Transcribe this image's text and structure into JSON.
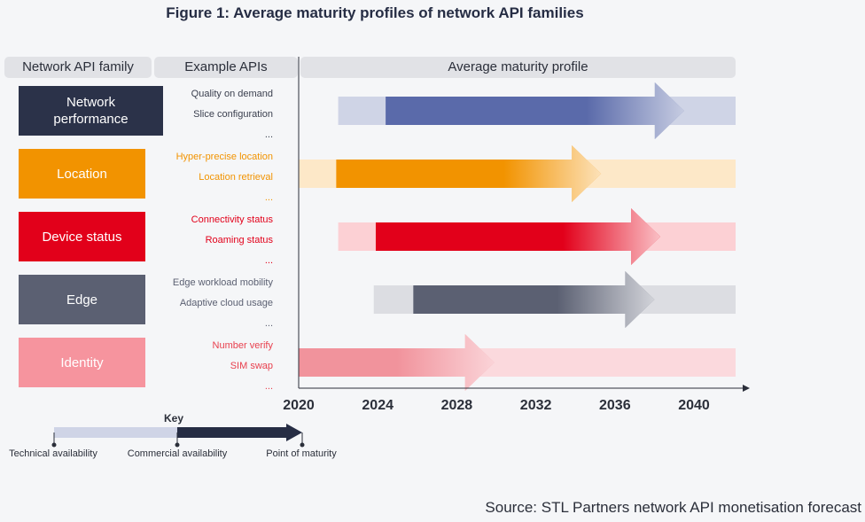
{
  "title": "Figure 1: Average maturity profiles of network API families",
  "headers": {
    "family": "Network API family",
    "examples": "Example APIs",
    "profile": "Average maturity profile"
  },
  "source": "Source: STL Partners network API monetisation forecast",
  "chart_data": {
    "type": "gantt-arrow",
    "x_axis": {
      "min": 2020,
      "max": 2042,
      "ticks": [
        2020,
        2024,
        2028,
        2032,
        2036,
        2040
      ]
    },
    "families": [
      {
        "name": "Network performance",
        "color": "#2b3249",
        "example_color": "#3a3f4e",
        "examples": [
          "Quality on demand",
          "Slice configuration",
          "..."
        ],
        "band_color": "#cfd4e6",
        "arrow_color": "#5a6aaa",
        "technical_availability": 2022,
        "commercial_availability": 2024.4,
        "point_of_maturity": 2039.5
      },
      {
        "name": "Location",
        "color": "#f29300",
        "example_color": "#f29300",
        "examples": [
          "Hyper-precise location",
          "Location retrieval",
          "..."
        ],
        "band_color": "#fde8c8",
        "arrow_color": "#f29300",
        "technical_availability": 2020,
        "commercial_availability": 2021.9,
        "point_of_maturity": 2035.3
      },
      {
        "name": "Device status",
        "color": "#e2001a",
        "example_color": "#e2001a",
        "examples": [
          "Connectivity status",
          "Roaming status",
          "..."
        ],
        "band_color": "#fcd0d4",
        "arrow_color": "#e2001a",
        "technical_availability": 2022,
        "commercial_availability": 2023.9,
        "point_of_maturity": 2038.3
      },
      {
        "name": "Edge",
        "color": "#5b6072",
        "example_color": "#5b6072",
        "examples": [
          "Edge workload mobility",
          "Adaptive cloud usage",
          "..."
        ],
        "band_color": "#dcdde2",
        "arrow_color": "#5b6072",
        "technical_availability": 2023.8,
        "commercial_availability": 2025.8,
        "point_of_maturity": 2038.0
      },
      {
        "name": "Identity",
        "color": "#f6949e",
        "example_color": "#e8404e",
        "examples": [
          "Number verify",
          "SIM swap",
          "..."
        ],
        "band_color": "#fbd9dd",
        "arrow_color": "#f1939c",
        "technical_availability": 2020,
        "commercial_availability": 2020,
        "point_of_maturity": 2029.9
      }
    ]
  },
  "key": {
    "title": "Key",
    "technical": "Technical availability",
    "commercial": "Commercial availability",
    "maturity": "Point of maturity"
  }
}
